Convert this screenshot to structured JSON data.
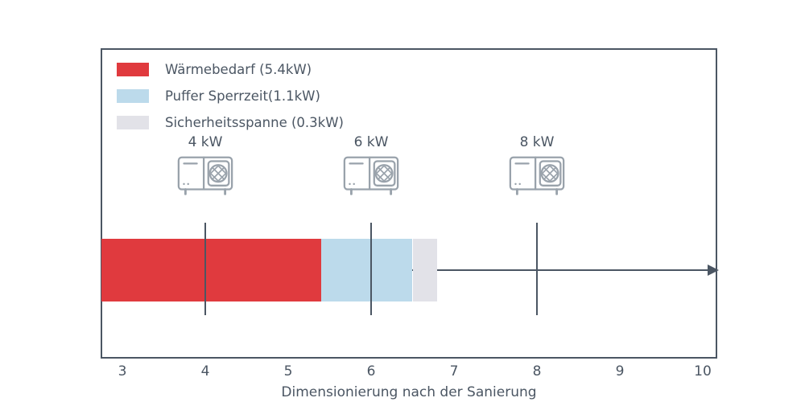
{
  "legend": {
    "items": [
      {
        "id": "waermebedarf",
        "label": "Wärmebedarf (5.4kW)",
        "color": "#e03a3e"
      },
      {
        "id": "puffer",
        "label": "Puffer Sperrzeit(1.1kW)",
        "color": "#bcdaeb"
      },
      {
        "id": "sicherheit",
        "label": "Sicherheitsspanne (0.3kW)",
        "color": "#e2e2e8"
      }
    ]
  },
  "chart_data": {
    "type": "bar",
    "orientation": "horizontal",
    "title": "",
    "xlabel": "Dimensionierung nach der Sanierung",
    "ylabel": "",
    "x_ticks": [
      3,
      4,
      5,
      6,
      7,
      8,
      9,
      10
    ],
    "xlim": [
      2.75,
      10.2
    ],
    "grid": false,
    "legend_position": "upper left",
    "bar": {
      "start": 2.75,
      "segments": [
        {
          "name": "waermebedarf",
          "label": "Wärmebedarf",
          "value_kw": 5.4,
          "end": 5.4,
          "color": "#e03a3e"
        },
        {
          "name": "puffer",
          "label": "Puffer Sperrzeit",
          "value_kw": 1.1,
          "end": 6.5,
          "color": "#bcdaeb"
        },
        {
          "name": "sicherheit",
          "label": "Sicherheitsspanne",
          "value_kw": 0.3,
          "end": 6.8,
          "color": "#e2e2e8"
        }
      ]
    },
    "markers": [
      {
        "x": 4,
        "label": "4 kW"
      },
      {
        "x": 6,
        "label": "6 kW"
      },
      {
        "x": 8,
        "label": "8 kW"
      }
    ]
  },
  "colors": {
    "axis": "#4b5663",
    "icon": "#99a2ab",
    "background": "#ffffff"
  }
}
